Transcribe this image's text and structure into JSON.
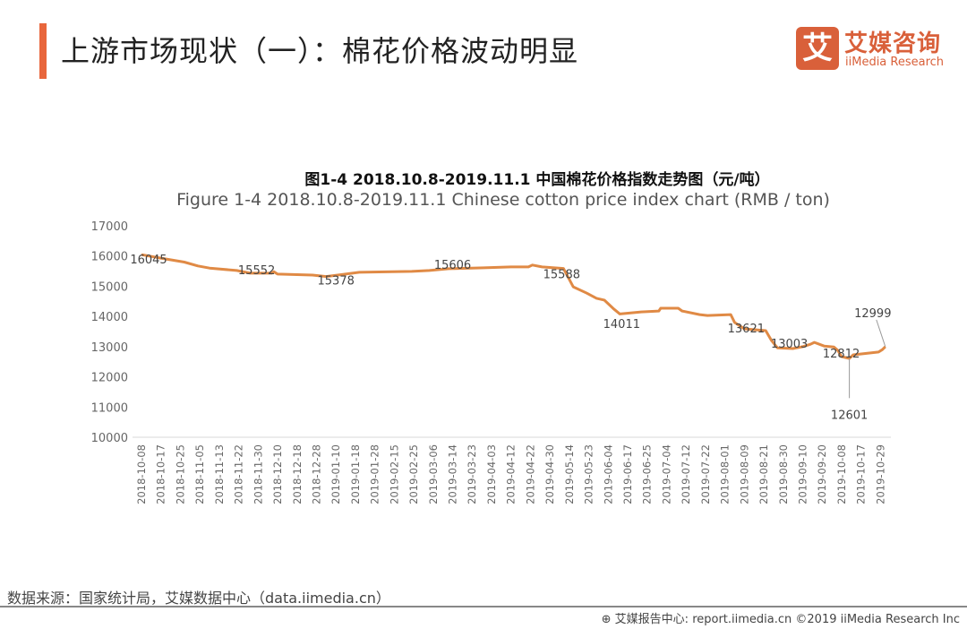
{
  "header": {
    "title": "上游市场现状（一）：棉花价格波动明显"
  },
  "logo": {
    "mark": "艾",
    "cn": "艾媒咨询",
    "en": "iiMedia Research"
  },
  "chart_data": {
    "type": "line",
    "title": "图1-4 2018.10.8-2019.11.1  中国棉花价格指数走势图（元/吨）",
    "subtitle": "Figure 1-4 2018.10.8-2019.11.1 Chinese cotton price index chart (RMB / ton)",
    "xlabel": "",
    "ylabel": "",
    "ylim": [
      10000,
      17000
    ],
    "yticks": [
      "17000",
      "16000",
      "15000",
      "14000",
      "13000",
      "12000",
      "11000",
      "10000"
    ],
    "grid": false,
    "color": "#e08a45",
    "categories": [
      "2018-10-08",
      "2018-10-17",
      "2018-10-25",
      "2018-11-05",
      "2018-11-13",
      "2018-11-22",
      "2018-11-30",
      "2018-12-10",
      "2018-12-18",
      "2018-12-28",
      "2019-01-10",
      "2019-01-18",
      "2019-01-28",
      "2019-02-15",
      "2019-02-25",
      "2019-03-06",
      "2019-03-14",
      "2019-03-23",
      "2019-04-03",
      "2019-04-12",
      "2019-04-22",
      "2019-04-30",
      "2019-05-14",
      "2019-05-23",
      "2019-06-04",
      "2019-06-17",
      "2019-06-25",
      "2019-07-04",
      "2019-07-12",
      "2019-07-22",
      "2019-08-01",
      "2019-08-09",
      "2019-08-21",
      "2019-08-30",
      "2019-09-10",
      "2019-09-20",
      "2019-10-08",
      "2019-10-17",
      "2019-10-29"
    ],
    "series": [
      {
        "name": "中国棉花价格指数",
        "points": [
          [
            0,
            16045
          ],
          [
            1,
            15930
          ],
          [
            2.2,
            15800
          ],
          [
            2.9,
            15670
          ],
          [
            3.5,
            15600
          ],
          [
            4.9,
            15520
          ],
          [
            5.6,
            15430
          ],
          [
            6.7,
            15430
          ],
          [
            6.8,
            15480
          ],
          [
            7,
            15400
          ],
          [
            8.8,
            15370
          ],
          [
            9.5,
            15320
          ],
          [
            11.2,
            15460
          ],
          [
            13.9,
            15490
          ],
          [
            14.8,
            15520
          ],
          [
            15.8,
            15580
          ],
          [
            17.6,
            15610
          ],
          [
            19,
            15640
          ],
          [
            19.9,
            15640
          ],
          [
            20.1,
            15700
          ],
          [
            20.6,
            15640
          ],
          [
            21.7,
            15588
          ],
          [
            22.2,
            14980
          ],
          [
            22.9,
            14770
          ],
          [
            23.4,
            14600
          ],
          [
            23.8,
            14540
          ],
          [
            24.3,
            14240
          ],
          [
            24.6,
            14080
          ],
          [
            25.7,
            14150
          ],
          [
            26.6,
            14180
          ],
          [
            26.7,
            14270
          ],
          [
            27.6,
            14270
          ],
          [
            27.8,
            14180
          ],
          [
            28.7,
            14060
          ],
          [
            29.1,
            14030
          ],
          [
            30.3,
            14060
          ],
          [
            30.5,
            13800
          ],
          [
            31,
            13590
          ],
          [
            32.1,
            13530
          ],
          [
            32.4,
            13200
          ],
          [
            32.7,
            12960
          ],
          [
            33.5,
            12935
          ],
          [
            34,
            13000
          ],
          [
            34.4,
            13080
          ],
          [
            34.6,
            13140
          ],
          [
            35.1,
            13020
          ],
          [
            35.6,
            12990
          ],
          [
            35.8,
            12880
          ],
          [
            36,
            12670
          ],
          [
            36.4,
            12610
          ],
          [
            36.6,
            12730
          ],
          [
            37.9,
            12820
          ],
          [
            38.1,
            12900
          ],
          [
            38.25,
            12999
          ]
        ]
      }
    ],
    "annotations": [
      {
        "text": "16045",
        "at": 0,
        "value": 16045
      },
      {
        "text": "15552",
        "at": 5,
        "value": 15552
      },
      {
        "text": "15378",
        "at": 10,
        "value": 15378
      },
      {
        "text": "15606",
        "at": 16,
        "value": 15606
      },
      {
        "text": "15588",
        "at": 21.7,
        "value": 15588
      },
      {
        "text": "14011",
        "at": 24.6,
        "value": 14011
      },
      {
        "text": "13621",
        "at": 31,
        "value": 13621
      },
      {
        "text": "13003",
        "at": 33.5,
        "value": 13003
      },
      {
        "text": "12812",
        "at": 35.8,
        "value": 12812
      },
      {
        "text": "12601",
        "at": 36.4,
        "value": 12601
      },
      {
        "text": "12999",
        "at": 38.25,
        "value": 12999
      }
    ]
  },
  "source": "数据来源：国家统计局，艾媒数据中心（data.iimedia.cn）",
  "footer": "⊕ 艾媒报告中心: report.iimedia.cn  ©2019  iiMedia Research Inc"
}
